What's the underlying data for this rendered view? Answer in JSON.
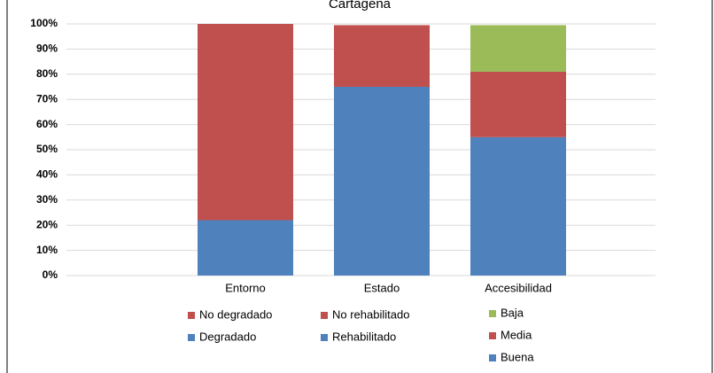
{
  "chart_data": {
    "type": "stacked_bar",
    "title": "Cartagena",
    "categories": [
      "Entorno",
      "Estado",
      "Accesibilidad"
    ],
    "series": [
      {
        "name": "Degradado",
        "color": "#4f81bd",
        "values": [
          22,
          null,
          null
        ]
      },
      {
        "name": "No degradado",
        "color": "#c0504d",
        "values": [
          78,
          null,
          null
        ]
      },
      {
        "name": "Rehabilitado",
        "color": "#4f81bd",
        "values": [
          null,
          75,
          null
        ]
      },
      {
        "name": "No rehabilitado",
        "color": "#c0504d",
        "values": [
          null,
          24.5,
          null
        ]
      },
      {
        "name": "Buena",
        "color": "#4f81bd",
        "values": [
          null,
          null,
          55
        ]
      },
      {
        "name": "Media",
        "color": "#c0504d",
        "values": [
          null,
          null,
          26
        ]
      },
      {
        "name": "Baja",
        "color": "#9bbb59",
        "values": [
          null,
          null,
          18.5
        ]
      }
    ],
    "ylim": [
      0,
      100
    ],
    "yticks": [
      {
        "value": 0,
        "label": "0%"
      },
      {
        "value": 10,
        "label": "10%"
      },
      {
        "value": 20,
        "label": "20%"
      },
      {
        "value": 30,
        "label": "30%"
      },
      {
        "value": 40,
        "label": "40%"
      },
      {
        "value": 50,
        "label": "50%"
      },
      {
        "value": 60,
        "label": "60%"
      },
      {
        "value": 70,
        "label": "70%"
      },
      {
        "value": 80,
        "label": "80%"
      },
      {
        "value": 90,
        "label": "90%"
      },
      {
        "value": 100,
        "label": "100%"
      }
    ],
    "grid": true
  }
}
